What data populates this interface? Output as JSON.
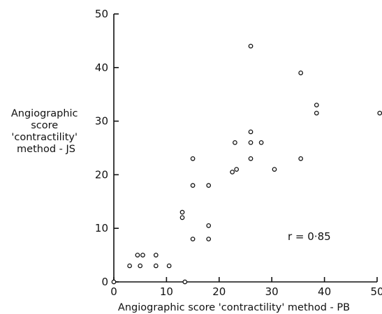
{
  "chart_data": {
    "type": "scatter",
    "title": "",
    "xlabel": "Angiographic score 'contractility' method - PB",
    "ylabel_lines": [
      "Angiographic",
      "score",
      "'contractility'",
      "method - JS"
    ],
    "xlim": [
      0,
      50
    ],
    "ylim": [
      0,
      50
    ],
    "xticks": [
      0,
      10,
      20,
      30,
      40,
      50
    ],
    "yticks": [
      0,
      10,
      20,
      30,
      40,
      50
    ],
    "grid": false,
    "annotation": "r = 0·85",
    "series": [
      {
        "points": [
          [
            0,
            0
          ],
          [
            13.5,
            0
          ],
          [
            3,
            3
          ],
          [
            5,
            3
          ],
          [
            8,
            3
          ],
          [
            10.5,
            3
          ],
          [
            4.5,
            5
          ],
          [
            5.5,
            5
          ],
          [
            8,
            5
          ],
          [
            15,
            8
          ],
          [
            18,
            8
          ],
          [
            18,
            10.5
          ],
          [
            13,
            12
          ],
          [
            13,
            13
          ],
          [
            15,
            18
          ],
          [
            18,
            18
          ],
          [
            22.5,
            20.5
          ],
          [
            23.3,
            21
          ],
          [
            15,
            23
          ],
          [
            26,
            23
          ],
          [
            35.5,
            23
          ],
          [
            30.5,
            21
          ],
          [
            23,
            26
          ],
          [
            26,
            26
          ],
          [
            28,
            26
          ],
          [
            26,
            28
          ],
          [
            38.5,
            31.5
          ],
          [
            38.5,
            33
          ],
          [
            50.5,
            31.5
          ],
          [
            35.5,
            39
          ],
          [
            26,
            44
          ]
        ]
      }
    ]
  }
}
